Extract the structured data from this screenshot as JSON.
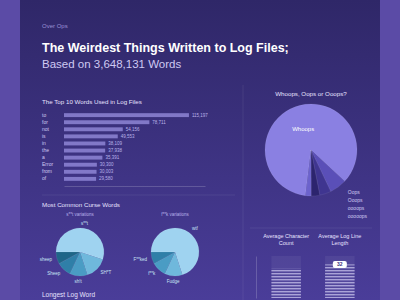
{
  "header": {
    "brand": "Over Ops",
    "title": "The Weirdest Things Written to Log Files;",
    "subtitle": "Based on 3,648,131 Words"
  },
  "chart_data": [
    {
      "type": "bar",
      "title": "The Top 10 Words Used in Log Files",
      "orientation": "horizontal",
      "categories": [
        "to",
        "for",
        "not",
        "is",
        "in",
        "the",
        "a",
        "Error",
        "from",
        "of"
      ],
      "values": [
        115197,
        78711,
        54156,
        49553,
        38109,
        37938,
        35391,
        30300,
        30003,
        29580
      ],
      "value_labels": [
        "115,197",
        "78,711",
        "54,156",
        "49,553",
        "38,109",
        "37,938",
        "35,391",
        "30,300",
        "30,003",
        "29,580"
      ],
      "data_labels": true,
      "xlim": [
        0,
        130000
      ],
      "xticks": [],
      "tick_labels": false,
      "color": "#9a90e0"
    },
    {
      "type": "pie",
      "title": "Whoops, Oops or Ooops?",
      "categories": [
        "Whoops",
        "Oops",
        "Ooops",
        "oooops",
        "ooooops"
      ],
      "values": [
        85,
        6,
        4,
        3,
        2
      ],
      "colors": [
        "#8a80e2",
        "#5a4fb8",
        "#3f3590",
        "#2c246e",
        "#6c62cc"
      ]
    },
    {
      "type": "pie",
      "title": "Most Common Curse Words",
      "subtitle": "s**t variations",
      "categories": [
        "s**t",
        "SH*T",
        "sh!t",
        "Sheep",
        "sheep"
      ],
      "values": [
        55,
        15,
        12,
        10,
        8
      ],
      "colors": [
        "#9fd3f0",
        "#6fb8dc",
        "#4a9cc4",
        "#2f7fa8",
        "#1f6688"
      ]
    },
    {
      "type": "pie",
      "subtitle": "f**k variations",
      "categories": [
        "wtf",
        "Fudge",
        "f**k",
        "F**ked"
      ],
      "values": [
        70,
        12,
        10,
        8
      ],
      "colors": [
        "#9fd3f0",
        "#6fb8dc",
        "#4a9cc4",
        "#2f7fa8"
      ]
    },
    {
      "type": "bar",
      "categories": [
        "Average Character Count",
        "Average Log Line Length"
      ],
      "values": [
        28,
        32
      ],
      "value_labels": [
        null,
        "32"
      ],
      "data_labels": true,
      "ylim": [
        0,
        40
      ],
      "yticks": [],
      "tick_labels": false,
      "color": "#e4e0ff"
    }
  ],
  "footer": {
    "title": "Longest Log Word"
  }
}
